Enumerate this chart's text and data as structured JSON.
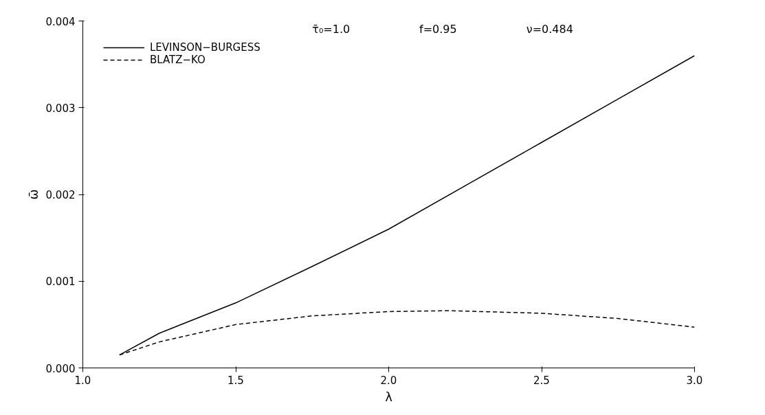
{
  "chart_data": {
    "type": "line",
    "xlabel": "λ",
    "ylabel": "ω̄",
    "annotations": [
      "τ̄₀=1.0",
      "f=0.95",
      "ν=0.484"
    ],
    "xlim": [
      1.0,
      3.0
    ],
    "xticks": [
      {
        "value": 1.0,
        "label": "1.0"
      },
      {
        "value": 1.5,
        "label": "1.5"
      },
      {
        "value": 2.0,
        "label": "2.0"
      },
      {
        "value": 2.5,
        "label": "2.5"
      },
      {
        "value": 3.0,
        "label": "3.0"
      }
    ],
    "ylim": [
      0.0,
      0.004
    ],
    "yticks": [
      {
        "value": 0.0,
        "label": "0.000"
      },
      {
        "value": 0.001,
        "label": "0.001"
      },
      {
        "value": 0.002,
        "label": "0.002"
      },
      {
        "value": 0.003,
        "label": "0.003"
      },
      {
        "value": 0.004,
        "label": "0.004"
      }
    ],
    "grid": false,
    "legend": "top left",
    "series": [
      {
        "name": "LEVINSON−BURGESS",
        "color": "#000000",
        "line_style": "solid",
        "x": [
          1.12,
          1.25,
          1.5,
          1.75,
          2.0,
          2.25,
          2.5,
          2.75,
          3.0
        ],
        "values": [
          0.00015,
          0.0004,
          0.00075,
          0.00117,
          0.0016,
          0.0021,
          0.0026,
          0.0031,
          0.0036
        ]
      },
      {
        "name": "BLATZ−KO",
        "color": "#000000",
        "line_style": "dashed",
        "x": [
          1.12,
          1.25,
          1.5,
          1.75,
          2.0,
          2.2,
          2.5,
          2.75,
          3.0
        ],
        "values": [
          0.00015,
          0.0003,
          0.0005,
          0.0006,
          0.00065,
          0.00066,
          0.00063,
          0.00057,
          0.00047
        ]
      }
    ]
  }
}
